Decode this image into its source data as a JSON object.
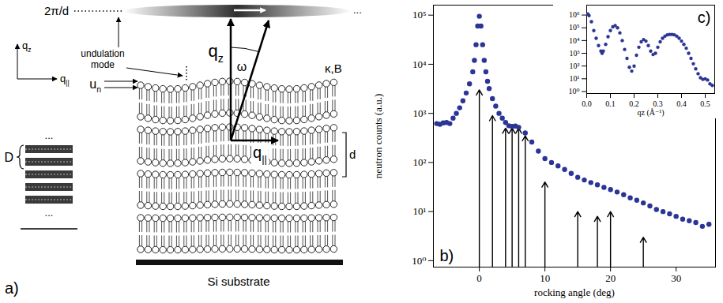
{
  "diagram": {
    "panel": "a)",
    "reciprocal_level": "2π/d",
    "ellipsis": "...",
    "coordinate_axes": [
      {
        "text": "q",
        "sub": "z"
      },
      {
        "text": "q",
        "sub": "||"
      }
    ],
    "undulation_label": "undulation mode",
    "vectors": {
      "qz": {
        "text": "q",
        "sub": "z"
      },
      "q_parallel": {
        "text": "q",
        "sub": "||"
      }
    },
    "angle": "ω",
    "displacement": {
      "text": "u",
      "sub": "n"
    },
    "moduli": "κ,B",
    "spacing": "d",
    "stack_period": "D",
    "substrate": "Si substrate"
  },
  "chart_data": [
    {
      "type": "scatter",
      "panel": "b)",
      "xlabel": "rocking angle (deg)",
      "ylabel": "neutron counts (a.u.)",
      "log": "y",
      "marker": "circle",
      "color": "#2b3595",
      "xlim": [
        -7,
        36
      ],
      "xticks": [
        0,
        10,
        20,
        30
      ],
      "ylim": [
        0.74,
        160000
      ],
      "yticks": [
        {
          "value": 1,
          "label": "10⁰"
        },
        {
          "value": 10,
          "label": "10¹"
        },
        {
          "value": 100,
          "label": "10²"
        },
        {
          "value": 1000,
          "label": "10³"
        },
        {
          "value": 10000,
          "label": "10⁴"
        },
        {
          "value": 100000,
          "label": "10⁵"
        }
      ],
      "x": [
        -6.5,
        -6,
        -5.5,
        -5,
        -4.5,
        -4,
        -3.5,
        -3,
        -2.5,
        -2,
        -1.5,
        -1,
        -0.75,
        -0.5,
        -0.25,
        0,
        0.25,
        0.5,
        0.75,
        1,
        1.25,
        1.5,
        2,
        2.5,
        3,
        3.5,
        4,
        4.5,
        5,
        5.5,
        6,
        7,
        8,
        9,
        10,
        11,
        12,
        13,
        14,
        15,
        16,
        17,
        18,
        19,
        20,
        21,
        22,
        23,
        24,
        25,
        26,
        27,
        28,
        29,
        30,
        31,
        32,
        33,
        34,
        35
      ],
      "values": [
        620,
        600,
        640,
        650,
        620,
        800,
        1000,
        1300,
        1800,
        2600,
        4000,
        7000,
        12000,
        25000,
        60000,
        95000,
        60000,
        25000,
        12000,
        7000,
        4500,
        3200,
        2000,
        1400,
        1000,
        800,
        650,
        560,
        540,
        550,
        520,
        400,
        260,
        170,
        120,
        100,
        85,
        72,
        60,
        50,
        44,
        39,
        35,
        31,
        28,
        25,
        22,
        19,
        17,
        15,
        13,
        11,
        10,
        9,
        8,
        7,
        6.5,
        6,
        5,
        5.5
      ],
      "arrows": {
        "x": [
          0,
          2,
          4,
          5,
          6,
          7,
          10,
          15,
          18,
          20,
          25
        ],
        "y": [
          3000,
          900,
          500,
          500,
          500,
          350,
          40,
          10,
          8,
          10,
          3
        ]
      }
    },
    {
      "type": "scatter",
      "panel": "c)",
      "xlabel": "qz (Å⁻¹)",
      "ylabel": null,
      "log": "y",
      "marker": "circle",
      "color": "#2b3595",
      "xlim": [
        0,
        0.54
      ],
      "xticks": [
        {
          "value": 0,
          "label": "0.0"
        },
        0.1,
        0.2,
        0.3,
        0.4,
        0.5
      ],
      "ylim": [
        0.7,
        6000000
      ],
      "yticks": [
        {
          "value": 1,
          "label": "10⁰"
        },
        {
          "value": 10,
          "label": "10¹"
        },
        {
          "value": 100,
          "label": "10²"
        },
        {
          "value": 1000,
          "label": "10³"
        },
        {
          "value": 10000,
          "label": "10⁴"
        },
        {
          "value": 100000,
          "label": "10⁵"
        },
        {
          "value": 1000000,
          "label": "10⁶"
        }
      ],
      "x": [
        0.005,
        0.01,
        0.02,
        0.03,
        0.04,
        0.05,
        0.06,
        0.065,
        0.07,
        0.08,
        0.09,
        0.1,
        0.11,
        0.12,
        0.13,
        0.14,
        0.15,
        0.16,
        0.17,
        0.18,
        0.19,
        0.2,
        0.21,
        0.22,
        0.23,
        0.24,
        0.25,
        0.26,
        0.27,
        0.28,
        0.29,
        0.3,
        0.31,
        0.32,
        0.33,
        0.34,
        0.35,
        0.36,
        0.37,
        0.38,
        0.39,
        0.4,
        0.41,
        0.42,
        0.43,
        0.44,
        0.45,
        0.46,
        0.47,
        0.48,
        0.49,
        0.5,
        0.51,
        0.52,
        0.53
      ],
      "values": [
        1200000,
        900000,
        300000,
        60000,
        15000,
        4000,
        1500,
        1000,
        1500,
        5000,
        20000,
        60000,
        120000,
        150000,
        100000,
        40000,
        10000,
        2000,
        400,
        80,
        40,
        100,
        700,
        3000,
        8000,
        12000,
        9000,
        4000,
        1500,
        800,
        1000,
        3000,
        8000,
        15000,
        22000,
        28000,
        30000,
        30000,
        28000,
        22000,
        15000,
        9000,
        5000,
        2500,
        1000,
        400,
        150,
        60,
        25,
        12,
        9,
        10,
        8,
        4,
        3
      ]
    }
  ]
}
